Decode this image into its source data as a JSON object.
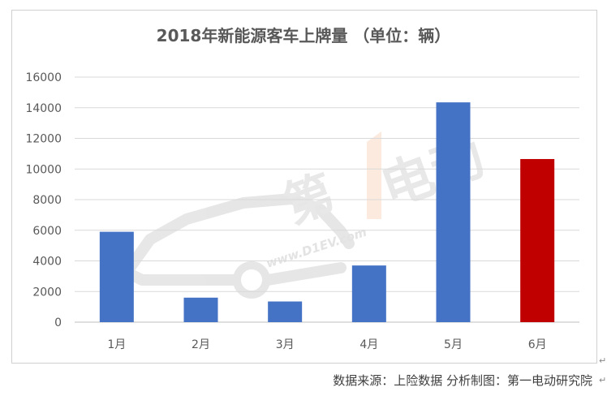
{
  "source_note": "数据来源：上险数据 分析制图：第一电动研究院",
  "watermark": {
    "brand": "第1电动",
    "url": "www.D1EV.com"
  },
  "colors": {
    "bar": "#4472c4",
    "highlight": "#c00000",
    "grid": "#d9d9d9",
    "text": "#595959"
  },
  "chart_data": {
    "type": "bar",
    "title": "2018年新能源客车上牌量 （单位：辆）",
    "categories": [
      "1月",
      "2月",
      "3月",
      "4月",
      "5月",
      "6月"
    ],
    "values": [
      5900,
      1600,
      1350,
      3700,
      14350,
      10650
    ],
    "highlight_index": 5,
    "ylim": [
      0,
      16000
    ],
    "yticks": [
      "0",
      "2000",
      "4000",
      "6000",
      "8000",
      "10000",
      "12000",
      "14000",
      "16000"
    ],
    "xlabel": "",
    "ylabel": "",
    "grid": true
  }
}
